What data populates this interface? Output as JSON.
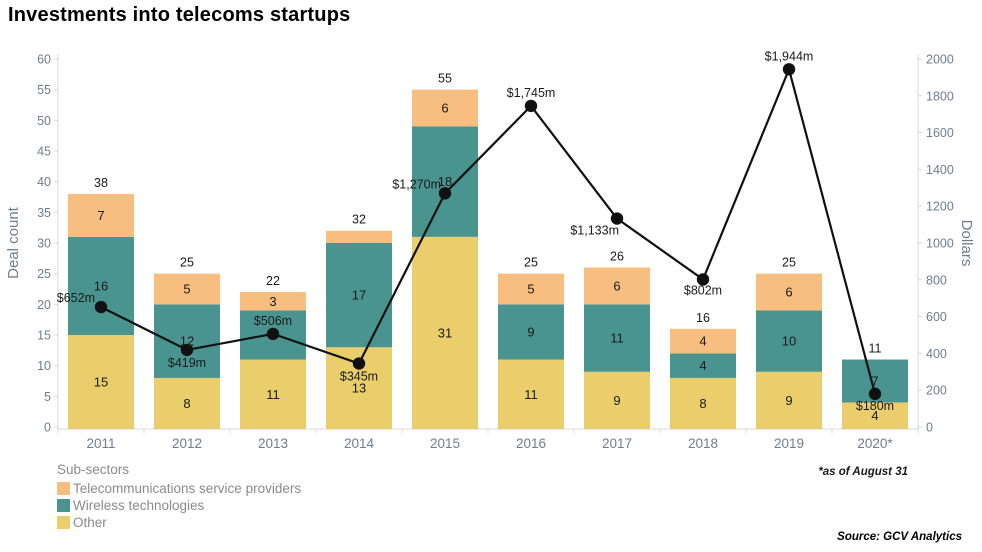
{
  "title": "Investments into telecoms startups",
  "footnote": "*as of August 31",
  "source": "Source: GCV Analytics",
  "legend": {
    "title": "Sub-sectors",
    "items": [
      {
        "label": "Telecommunications service providers",
        "color": "#F8BE80"
      },
      {
        "label": "Wireless technologies",
        "color": "#4A9490"
      },
      {
        "label": "Other",
        "color": "#E9CE6B"
      }
    ]
  },
  "chart_data": {
    "type": "bar",
    "subtype": "stacked-bars-with-line-overlay",
    "title": "Investments into telecoms startups",
    "categories": [
      "2011",
      "2012",
      "2013",
      "2014",
      "2015",
      "2016",
      "2017",
      "2018",
      "2019",
      "2020*"
    ],
    "series": [
      {
        "name": "Other",
        "color": "#E9CE6B",
        "values": [
          15,
          8,
          11,
          13,
          31,
          11,
          9,
          8,
          9,
          4
        ]
      },
      {
        "name": "Wireless technologies",
        "color": "#4A9490",
        "values": [
          16,
          12,
          8,
          17,
          18,
          9,
          11,
          4,
          10,
          7
        ]
      },
      {
        "name": "Telecommunications service providers",
        "color": "#F8BE80",
        "values": [
          7,
          5,
          3,
          2,
          6,
          5,
          6,
          4,
          6,
          0
        ]
      }
    ],
    "bar_totals": [
      38,
      25,
      22,
      32,
      55,
      25,
      26,
      16,
      25,
      11
    ],
    "line": {
      "name": "Dollars",
      "color": "#111111",
      "values": [
        652,
        419,
        506,
        345,
        1270,
        1745,
        1133,
        802,
        1944,
        180
      ],
      "point_labels": [
        "$652m",
        "$419m",
        "$506m",
        "$345m",
        "$1,270m",
        "$1,745m",
        "$1,133m",
        "$802m",
        "$1,944m",
        "$180m"
      ]
    },
    "ylabel": "Deal count",
    "y2label": "Dollars",
    "ylim": [
      0,
      60
    ],
    "y2lim": [
      0,
      2000
    ],
    "yticks": [
      0,
      5,
      10,
      15,
      20,
      25,
      30,
      35,
      40,
      45,
      50,
      55,
      60
    ],
    "y2ticks": [
      0,
      200,
      400,
      600,
      800,
      1000,
      1200,
      1400,
      1600,
      1800,
      2000
    ],
    "grid": false,
    "legend_position": "bottom-left",
    "axis_text_color": "#6F7D8C",
    "label_text_color": "#1a1a1a",
    "axis_line_color": "#d9d9d9"
  }
}
